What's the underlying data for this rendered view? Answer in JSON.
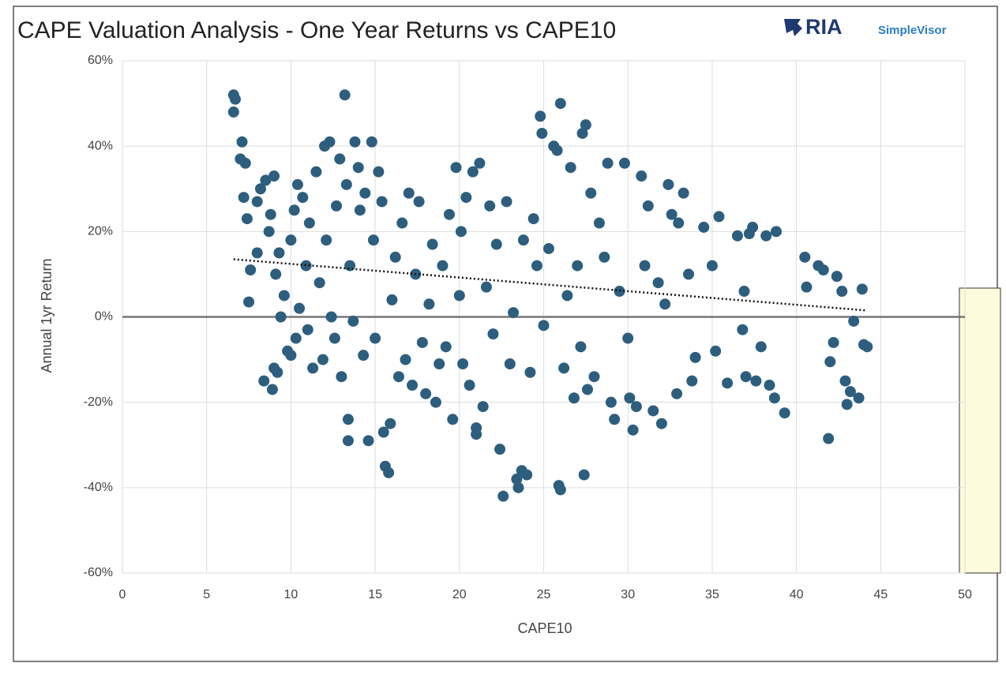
{
  "chart_data": {
    "type": "scatter",
    "title": "CAPE Valuation Analysis - One Year Returns vs CAPE10",
    "logo": {
      "brand": "RIA",
      "product": "SimpleVisor"
    },
    "x_label": "CAPE10",
    "y_label": "Annual 1yr Return",
    "color": "#2d5e7e",
    "grid": true,
    "xlim": [
      0,
      50
    ],
    "xticks": [
      0,
      5,
      10,
      15,
      20,
      25,
      30,
      35,
      40,
      45,
      50
    ],
    "ylim": [
      -60,
      60
    ],
    "yticks": [
      {
        "value": -60,
        "label": "-60%"
      },
      {
        "value": -40,
        "label": "-40%"
      },
      {
        "value": -20,
        "label": "-20%"
      },
      {
        "value": 0,
        "label": "0%"
      },
      {
        "value": 20,
        "label": "20%"
      },
      {
        "value": 40,
        "label": "40%"
      },
      {
        "value": 60,
        "label": "60%"
      }
    ],
    "trendline": {
      "x": [
        6.6,
        44.2
      ],
      "values": [
        13.5,
        1.5
      ]
    },
    "x": [
      6.6,
      6.6,
      6.7,
      7,
      7.1,
      7.2,
      7.3,
      7.4,
      7.5,
      7.6,
      8,
      8,
      8.2,
      8.4,
      8.5,
      8.7,
      8.8,
      8.9,
      9,
      9,
      9.1,
      9.2,
      9.3,
      9.4,
      9.6,
      9.8,
      10,
      10,
      10.2,
      10.3,
      10.4,
      10.5,
      10.7,
      10.9,
      11,
      11.1,
      11.3,
      11.5,
      11.7,
      11.9,
      12,
      12.1,
      12.3,
      12.4,
      12.6,
      12.7,
      12.9,
      13,
      13.2,
      13.3,
      13.4,
      13.4,
      13.5,
      13.7,
      13.8,
      14,
      14.1,
      14.3,
      14.4,
      14.6,
      14.8,
      14.9,
      15,
      15.2,
      15.4,
      15.5,
      15.6,
      15.8,
      15.9,
      16,
      16.2,
      16.4,
      16.6,
      16.8,
      17,
      17.2,
      17.4,
      17.6,
      17.8,
      18,
      18.2,
      18.4,
      18.6,
      18.8,
      19,
      19.2,
      19.4,
      19.6,
      19.8,
      20,
      20.1,
      20.2,
      20.4,
      20.6,
      20.8,
      21,
      21,
      21.2,
      21.4,
      21.6,
      21.8,
      22,
      22.2,
      22.4,
      22.6,
      22.8,
      23,
      23.2,
      23.4,
      23.5,
      23.7,
      23.8,
      24,
      24.2,
      24.4,
      24.6,
      24.8,
      24.9,
      25,
      25.3,
      25.6,
      25.8,
      25.9,
      26,
      26,
      26.2,
      26.4,
      26.6,
      26.8,
      27,
      27.2,
      27.3,
      27.4,
      27.5,
      27.6,
      27.8,
      28,
      28.3,
      28.6,
      28.8,
      29,
      29.2,
      29.5,
      29.8,
      30,
      30.1,
      30.3,
      30.5,
      30.8,
      31,
      31.2,
      31.5,
      31.8,
      32,
      32.2,
      32.4,
      32.6,
      32.9,
      33,
      33.3,
      33.6,
      33.8,
      34,
      34.5,
      35,
      35.2,
      35.4,
      35.9,
      36.5,
      36.8,
      36.9,
      37,
      37.2,
      37.4,
      37.6,
      37.9,
      38.2,
      38.4,
      38.7,
      38.8,
      39.3,
      40.5,
      40.6,
      41.3,
      41.6,
      41.9,
      42,
      42.2,
      42.4,
      42.7,
      42.9,
      43,
      43.2,
      43.4,
      43.7,
      43.9,
      44,
      44.2
    ],
    "values": [
      52,
      48,
      51,
      37,
      41,
      28,
      36,
      23,
      3.5,
      11,
      27,
      15,
      30,
      -15,
      32,
      20,
      24,
      -17,
      33,
      -12,
      10,
      -13,
      15,
      0,
      5,
      -8,
      18,
      -9,
      25,
      -5,
      31,
      2,
      28,
      12,
      -3,
      22,
      -12,
      34,
      8,
      -10,
      40,
      18,
      41,
      0,
      -5,
      26,
      37,
      -14,
      52,
      31,
      -29,
      -24,
      12,
      -1,
      41,
      35,
      25,
      -9,
      29,
      -29,
      41,
      18,
      -5,
      34,
      27,
      -27,
      -35,
      -36.5,
      -25,
      4,
      14,
      -14,
      22,
      -10,
      29,
      -16,
      10,
      27,
      -6,
      -18,
      3,
      17,
      -20,
      -11,
      12,
      -7,
      24,
      -24,
      35,
      5,
      20,
      -11,
      28,
      -16,
      34,
      -26,
      -27.5,
      36,
      -21,
      7,
      26,
      -4,
      17,
      -31,
      -42,
      27,
      -11,
      1,
      -38,
      -40,
      -36,
      18,
      -37,
      -13,
      23,
      12,
      47,
      43,
      -2,
      16,
      40,
      39,
      -39.5,
      -40.5,
      50,
      -12,
      5,
      35,
      -19,
      12,
      -7,
      43,
      -37,
      45,
      -17,
      29,
      -14,
      22,
      14,
      36,
      -20,
      -24,
      6,
      36,
      -5,
      -19,
      -26.5,
      -21,
      33,
      12,
      26,
      -22,
      8,
      -25,
      3,
      31,
      24,
      -18,
      22,
      29,
      10,
      -15,
      -9.5,
      21,
      12,
      -8,
      23.5,
      -15.5,
      19,
      -3,
      6,
      -14,
      19.5,
      21,
      -15,
      -7,
      19,
      -16,
      -19,
      20,
      -22.5,
      14,
      7,
      12,
      11,
      -28.5,
      -10.5,
      -6,
      9.5,
      6,
      -15,
      -20.5,
      -17.5,
      -1,
      -19,
      6.5,
      -6.5,
      -7
    ]
  }
}
